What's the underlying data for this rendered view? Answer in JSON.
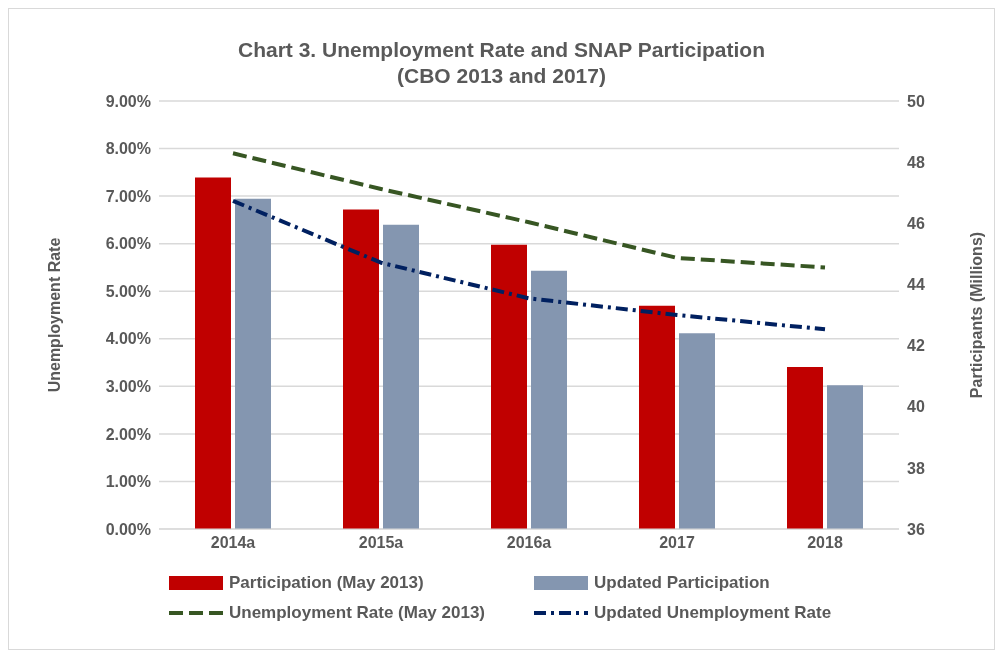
{
  "chart_data": {
    "type": "bar",
    "title": "Chart 3. Unemployment  Rate and SNAP Participation",
    "subtitle": "(CBO 2013 and 2017)",
    "ylabel": "Unemployment Rate",
    "y2label": "Participants (Millions)",
    "categories": [
      "2014a",
      "2015a",
      "2016a",
      "2017",
      "2018"
    ],
    "series": [
      {
        "name": "Participation (May 2013)",
        "axis": "y2",
        "color": "#c00000",
        "values": [
          47.5,
          46.45,
          45.3,
          43.3,
          41.3
        ]
      },
      {
        "name": "Updated Participation",
        "axis": "y2",
        "color": "#8496b0",
        "values": [
          46.8,
          45.95,
          44.45,
          42.4,
          40.7
        ]
      },
      {
        "name": "Unemployment Rate (May 2013)",
        "type": "line",
        "axis": "y",
        "color": "#375623",
        "line_style": "dashed",
        "values": [
          7.9,
          7.15,
          6.45,
          5.7,
          5.5
        ]
      },
      {
        "name": "Updated Unemployment Rate",
        "type": "line",
        "axis": "y",
        "color": "#002060",
        "line_style": "dotted",
        "values": [
          6.9,
          5.6,
          4.85,
          4.5,
          4.2
        ]
      }
    ],
    "ylim": [
      0,
      9
    ],
    "yticks": [
      {
        "value": 0,
        "label": "0.00%"
      },
      {
        "value": 1,
        "label": "1.00%"
      },
      {
        "value": 2,
        "label": "2.00%"
      },
      {
        "value": 3,
        "label": "3.00%"
      },
      {
        "value": 4,
        "label": "4.00%"
      },
      {
        "value": 5,
        "label": "5.00%"
      },
      {
        "value": 6,
        "label": "6.00%"
      },
      {
        "value": 7,
        "label": "7.00%"
      },
      {
        "value": 8,
        "label": "8.00%"
      },
      {
        "value": 9,
        "label": "9.00%"
      }
    ],
    "y2lim": [
      36,
      50
    ],
    "y2ticks": [
      36,
      38,
      40,
      42,
      44,
      46,
      48,
      50
    ],
    "grid": "y",
    "legend": "bottom",
    "marker": "none"
  }
}
